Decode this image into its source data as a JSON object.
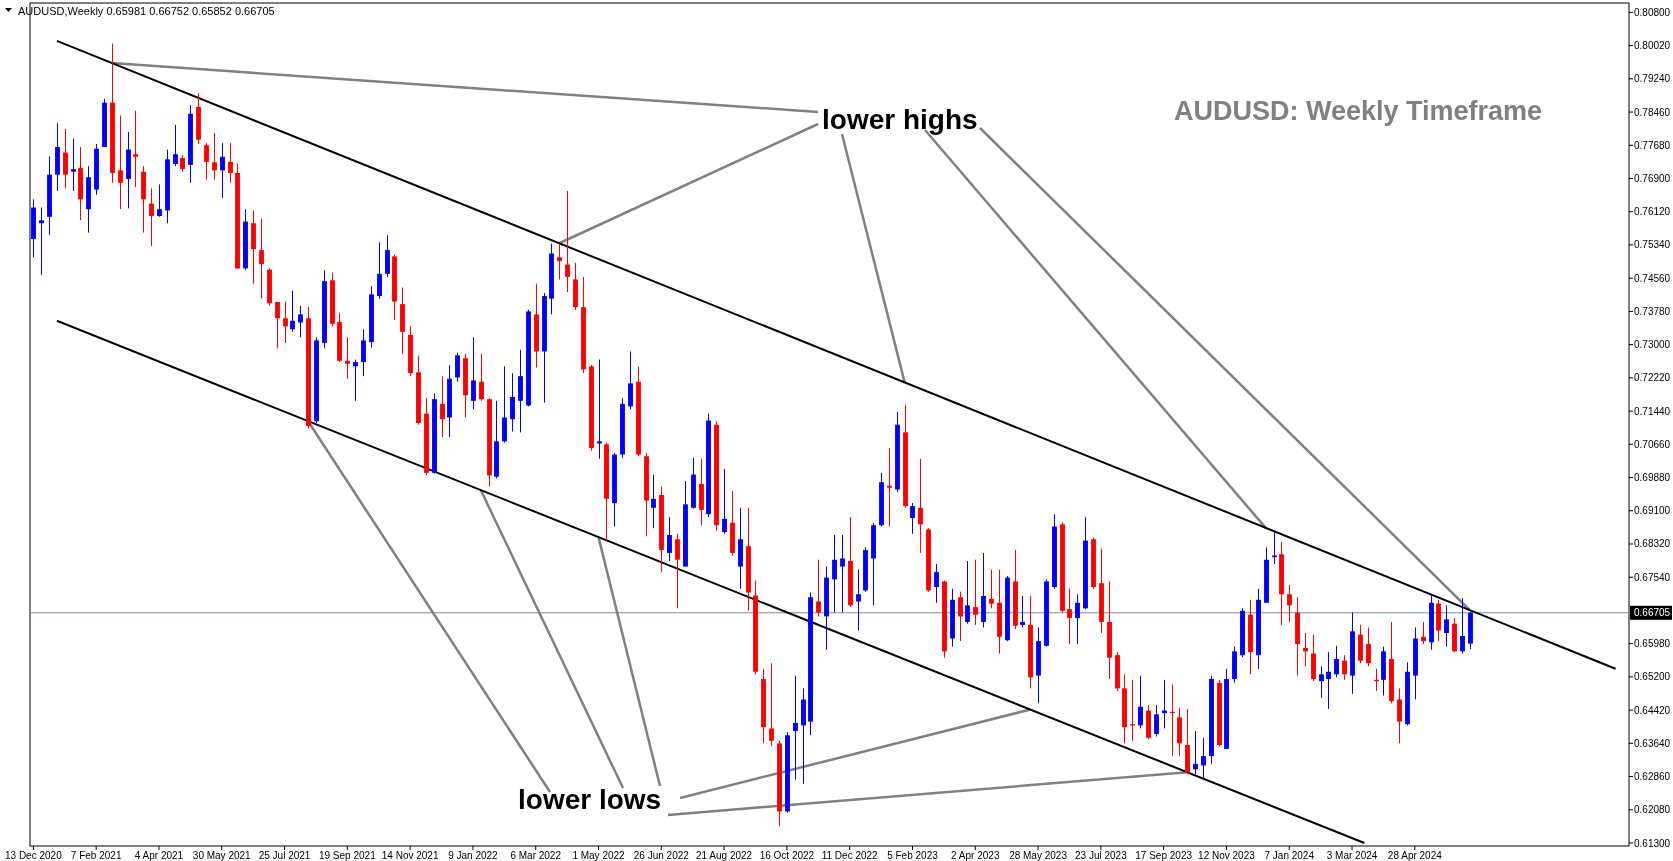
{
  "chart_data": {
    "type": "candlestick",
    "title": "AUDUSD: Weekly Timeframe",
    "annotations": [
      "AUDUSD,Weekly  0.65981 0.66752 0.65852 0.66705",
      {
        "text": "lower highs",
        "x": "2022-03-27",
        "y": 0.7538
      },
      {
        "text": "lower lows",
        "x": "2021-08-15",
        "y": 0.712
      }
    ],
    "x": [
      "2020-12-13",
      "2020-12-20",
      "2020-12-27",
      "2021-01-03",
      "2021-01-10",
      "2021-01-17",
      "2021-01-24",
      "2021-01-31",
      "2021-02-07",
      "2021-02-14",
      "2021-02-21",
      "2021-02-28",
      "2021-03-07",
      "2021-03-14",
      "2021-03-21",
      "2021-03-28",
      "2021-04-04",
      "2021-04-11",
      "2021-04-18",
      "2021-04-25",
      "2021-05-02",
      "2021-05-09",
      "2021-05-16",
      "2021-05-23",
      "2021-05-30",
      "2021-06-06",
      "2021-06-13",
      "2021-06-20",
      "2021-06-27",
      "2021-07-04",
      "2021-07-11",
      "2021-07-18",
      "2021-07-25",
      "2021-08-01",
      "2021-08-08",
      "2021-08-15",
      "2021-08-22",
      "2021-08-29",
      "2021-09-05",
      "2021-09-12",
      "2021-09-19",
      "2021-09-26",
      "2021-10-03",
      "2021-10-10",
      "2021-10-17",
      "2021-10-24",
      "2021-10-31",
      "2021-11-07",
      "2021-11-14",
      "2021-11-21",
      "2021-11-28",
      "2021-12-05",
      "2021-12-12",
      "2021-12-19",
      "2021-12-26",
      "2022-01-02",
      "2022-01-09",
      "2022-01-16",
      "2022-01-23",
      "2022-01-30",
      "2022-02-06",
      "2022-02-13",
      "2022-02-20",
      "2022-02-27",
      "2022-03-06",
      "2022-03-13",
      "2022-03-20",
      "2022-03-27",
      "2022-04-03",
      "2022-04-10",
      "2022-04-17",
      "2022-04-24",
      "2022-05-01",
      "2022-05-08",
      "2022-05-15",
      "2022-05-22",
      "2022-05-29",
      "2022-06-05",
      "2022-06-12",
      "2022-06-19",
      "2022-06-26",
      "2022-07-03",
      "2022-07-10",
      "2022-07-17",
      "2022-07-24",
      "2022-07-31",
      "2022-08-07",
      "2022-08-14",
      "2022-08-21",
      "2022-08-28",
      "2022-09-04",
      "2022-09-11",
      "2022-09-18",
      "2022-09-25",
      "2022-10-02",
      "2022-10-09",
      "2022-10-16",
      "2022-10-23",
      "2022-10-30",
      "2022-11-06",
      "2022-11-13",
      "2022-11-20",
      "2022-11-27",
      "2022-12-04",
      "2022-12-11",
      "2022-12-18",
      "2022-12-25",
      "2023-01-01",
      "2023-01-08",
      "2023-01-15",
      "2023-01-22",
      "2023-01-29",
      "2023-02-05",
      "2023-02-12",
      "2023-02-19",
      "2023-02-26",
      "2023-03-05",
      "2023-03-12",
      "2023-03-19",
      "2023-03-26",
      "2023-04-02",
      "2023-04-09",
      "2023-04-16",
      "2023-04-23",
      "2023-04-30",
      "2023-05-07",
      "2023-05-14",
      "2023-05-21",
      "2023-05-28",
      "2023-06-04",
      "2023-06-11",
      "2023-06-18",
      "2023-06-25",
      "2023-07-02",
      "2023-07-09",
      "2023-07-16",
      "2023-07-23",
      "2023-07-30",
      "2023-08-06",
      "2023-08-13",
      "2023-08-20",
      "2023-08-27",
      "2023-09-03",
      "2023-09-10",
      "2023-09-17",
      "2023-09-24",
      "2023-10-01",
      "2023-10-08",
      "2023-10-15",
      "2023-10-22",
      "2023-10-29",
      "2023-11-05",
      "2023-11-12",
      "2023-11-19",
      "2023-11-26",
      "2023-12-03",
      "2023-12-10",
      "2023-12-17",
      "2023-12-24",
      "2023-12-31",
      "2024-01-07",
      "2024-01-14",
      "2024-01-21",
      "2024-01-28",
      "2024-02-04",
      "2024-02-11",
      "2024-02-18",
      "2024-02-25",
      "2024-03-03",
      "2024-03-10",
      "2024-03-17",
      "2024-03-24",
      "2024-03-31",
      "2024-04-07",
      "2024-04-14",
      "2024-04-21",
      "2024-04-28",
      "2024-05-05",
      "2024-05-12",
      "2024-05-19",
      "2024-05-26",
      "2024-06-02",
      "2024-06-09",
      "2024-06-16"
    ],
    "ohlc": [
      [
        0.7548,
        0.7641,
        0.7505,
        0.7622
      ],
      [
        0.7585,
        0.7622,
        0.7463,
        0.7592
      ],
      [
        0.76,
        0.7742,
        0.7557,
        0.7699
      ],
      [
        0.7699,
        0.782,
        0.7661,
        0.7764
      ],
      [
        0.7751,
        0.7806,
        0.7667,
        0.7699
      ],
      [
        0.7706,
        0.7784,
        0.7661,
        0.7712
      ],
      [
        0.7715,
        0.7764,
        0.7592,
        0.7641
      ],
      [
        0.7618,
        0.7719,
        0.7563,
        0.7693
      ],
      [
        0.7664,
        0.7771,
        0.7652,
        0.776
      ],
      [
        0.7764,
        0.7877,
        0.7764,
        0.7868
      ],
      [
        0.7868,
        0.8007,
        0.768,
        0.7703
      ],
      [
        0.7709,
        0.7838,
        0.7618,
        0.768
      ],
      [
        0.7689,
        0.7799,
        0.762,
        0.7758
      ],
      [
        0.7747,
        0.7849,
        0.767,
        0.7741
      ],
      [
        0.7706,
        0.7719,
        0.7563,
        0.7641
      ],
      [
        0.7631,
        0.7667,
        0.7531,
        0.7602
      ],
      [
        0.7602,
        0.7676,
        0.76,
        0.7618
      ],
      [
        0.7615,
        0.7758,
        0.7585,
        0.7735
      ],
      [
        0.7724,
        0.7816,
        0.7719,
        0.7747
      ],
      [
        0.7738,
        0.7745,
        0.7706,
        0.7712
      ],
      [
        0.7722,
        0.7862,
        0.768,
        0.7842
      ],
      [
        0.7858,
        0.789,
        0.7771,
        0.7781
      ],
      [
        0.7768,
        0.7773,
        0.7687,
        0.7729
      ],
      [
        0.7728,
        0.7797,
        0.7687,
        0.7709
      ],
      [
        0.7709,
        0.7773,
        0.7644,
        0.7741
      ],
      [
        0.7729,
        0.7773,
        0.768,
        0.7703
      ],
      [
        0.7703,
        0.7725,
        0.7479,
        0.7479
      ],
      [
        0.7479,
        0.7618,
        0.7475,
        0.7589
      ],
      [
        0.7585,
        0.7615,
        0.7443,
        0.7524
      ],
      [
        0.7522,
        0.7596,
        0.7408,
        0.7489
      ],
      [
        0.7476,
        0.7479,
        0.7392,
        0.7397
      ],
      [
        0.74,
        0.74,
        0.7291,
        0.7362
      ],
      [
        0.7362,
        0.7401,
        0.7304,
        0.7343
      ],
      [
        0.7336,
        0.7427,
        0.733,
        0.7356
      ],
      [
        0.7352,
        0.7391,
        0.7317,
        0.7371
      ],
      [
        0.7362,
        0.7388,
        0.7103,
        0.7109
      ],
      [
        0.712,
        0.7317,
        0.7116,
        0.731
      ],
      [
        0.7304,
        0.7475,
        0.7291,
        0.7449
      ],
      [
        0.7451,
        0.7469,
        0.7343,
        0.7349
      ],
      [
        0.7353,
        0.7375,
        0.7259,
        0.7262
      ],
      [
        0.7262,
        0.7317,
        0.722,
        0.7255
      ],
      [
        0.7249,
        0.7265,
        0.7168,
        0.7259
      ],
      [
        0.7259,
        0.7336,
        0.7226,
        0.731
      ],
      [
        0.7306,
        0.7437,
        0.7293,
        0.7418
      ],
      [
        0.7414,
        0.754,
        0.7408,
        0.7466
      ],
      [
        0.7466,
        0.7557,
        0.7459,
        0.7522
      ],
      [
        0.7507,
        0.7511,
        0.7358,
        0.7401
      ],
      [
        0.7395,
        0.7434,
        0.7278,
        0.733
      ],
      [
        0.7323,
        0.7343,
        0.7226,
        0.7233
      ],
      [
        0.7235,
        0.7274,
        0.7112,
        0.7116
      ],
      [
        0.7138,
        0.7174,
        0.6993,
        0.6999
      ],
      [
        0.6999,
        0.7185,
        0.6997,
        0.7172
      ],
      [
        0.7161,
        0.7226,
        0.7083,
        0.7125
      ],
      [
        0.7129,
        0.7252,
        0.7083,
        0.722
      ],
      [
        0.7223,
        0.7281,
        0.7213,
        0.7275
      ],
      [
        0.7268,
        0.7278,
        0.7129,
        0.7181
      ],
      [
        0.7168,
        0.7317,
        0.7148,
        0.7216
      ],
      [
        0.7213,
        0.7278,
        0.7168,
        0.7172
      ],
      [
        0.7172,
        0.7174,
        0.6967,
        0.6993
      ],
      [
        0.699,
        0.7168,
        0.6986,
        0.7073
      ],
      [
        0.7073,
        0.7249,
        0.707,
        0.7129
      ],
      [
        0.7125,
        0.7233,
        0.7096,
        0.7177
      ],
      [
        0.7168,
        0.7288,
        0.7094,
        0.7226
      ],
      [
        0.7157,
        0.7382,
        0.7155,
        0.7378
      ],
      [
        0.7371,
        0.7443,
        0.7246,
        0.7284
      ],
      [
        0.7284,
        0.7421,
        0.7164,
        0.7414
      ],
      [
        0.7408,
        0.7537,
        0.7371,
        0.7514
      ],
      [
        0.7505,
        0.7537,
        0.7453,
        0.7496
      ],
      [
        0.7488,
        0.7661,
        0.7423,
        0.7459
      ],
      [
        0.7453,
        0.7492,
        0.7382,
        0.7388
      ],
      [
        0.7388,
        0.7459,
        0.7233,
        0.7242
      ],
      [
        0.7249,
        0.7252,
        0.7051,
        0.7057
      ],
      [
        0.7068,
        0.7265,
        0.7032,
        0.7073
      ],
      [
        0.7066,
        0.707,
        0.684,
        0.6938
      ],
      [
        0.6928,
        0.7045,
        0.6873,
        0.7042
      ],
      [
        0.7042,
        0.7174,
        0.7034,
        0.7161
      ],
      [
        0.7155,
        0.7284,
        0.7148,
        0.7209
      ],
      [
        0.7213,
        0.7248,
        0.7038,
        0.7042
      ],
      [
        0.7038,
        0.7045,
        0.685,
        0.6934
      ],
      [
        0.6917,
        0.6995,
        0.6869,
        0.6938
      ],
      [
        0.6947,
        0.6967,
        0.6766,
        0.6818
      ],
      [
        0.6811,
        0.6895,
        0.6792,
        0.6853
      ],
      [
        0.6843,
        0.6856,
        0.6681,
        0.6795
      ],
      [
        0.6779,
        0.698,
        0.6779,
        0.6925
      ],
      [
        0.6917,
        0.7034,
        0.6915,
        0.6995
      ],
      [
        0.6973,
        0.7032,
        0.6876,
        0.6912
      ],
      [
        0.6902,
        0.7138,
        0.6895,
        0.7122
      ],
      [
        0.7112,
        0.712,
        0.6863,
        0.6876
      ],
      [
        0.686,
        0.7008,
        0.6856,
        0.6891
      ],
      [
        0.6882,
        0.6956,
        0.6805,
        0.6811
      ],
      [
        0.6779,
        0.6917,
        0.6727,
        0.6843
      ],
      [
        0.6827,
        0.6917,
        0.6675,
        0.6718
      ],
      [
        0.6711,
        0.6746,
        0.6526,
        0.6532
      ],
      [
        0.6515,
        0.6539,
        0.6364,
        0.6402
      ],
      [
        0.6399,
        0.6552,
        0.6357,
        0.637
      ],
      [
        0.6364,
        0.637,
        0.6169,
        0.6204
      ],
      [
        0.6204,
        0.639,
        0.6201,
        0.6383
      ],
      [
        0.6393,
        0.6523,
        0.6279,
        0.6412
      ],
      [
        0.6406,
        0.6493,
        0.6269,
        0.6467
      ],
      [
        0.6415,
        0.6718,
        0.6383,
        0.6707
      ],
      [
        0.6697,
        0.6795,
        0.6662,
        0.6671
      ],
      [
        0.6662,
        0.6779,
        0.6584,
        0.6753
      ],
      [
        0.6749,
        0.6853,
        0.6671,
        0.6795
      ],
      [
        0.6779,
        0.6853,
        0.6671,
        0.6798
      ],
      [
        0.6792,
        0.6895,
        0.6684,
        0.6688
      ],
      [
        0.6697,
        0.6772,
        0.6629,
        0.6714
      ],
      [
        0.6723,
        0.6824,
        0.672,
        0.6818
      ],
      [
        0.6798,
        0.6882,
        0.6688,
        0.6876
      ],
      [
        0.6876,
        0.6999,
        0.6873,
        0.6977
      ],
      [
        0.6969,
        0.7057,
        0.6873,
        0.6964
      ],
      [
        0.696,
        0.7142,
        0.6954,
        0.7112
      ],
      [
        0.7094,
        0.7159,
        0.6917,
        0.6921
      ],
      [
        0.6893,
        0.6928,
        0.6856,
        0.6921
      ],
      [
        0.6917,
        0.7032,
        0.6811,
        0.6878
      ],
      [
        0.6866,
        0.6869,
        0.672,
        0.6723
      ],
      [
        0.6731,
        0.6785,
        0.6694,
        0.6766
      ],
      [
        0.6744,
        0.6746,
        0.6565,
        0.658
      ],
      [
        0.661,
        0.6727,
        0.6591,
        0.6701
      ],
      [
        0.6707,
        0.672,
        0.6604,
        0.6662
      ],
      [
        0.6649,
        0.6792,
        0.6645,
        0.6688
      ],
      [
        0.6684,
        0.6795,
        0.6642,
        0.6666
      ],
      [
        0.6649,
        0.6811,
        0.6636,
        0.671
      ],
      [
        0.6703,
        0.6772,
        0.6681,
        0.6692
      ],
      [
        0.6694,
        0.6772,
        0.6575,
        0.6614
      ],
      [
        0.6606,
        0.6757,
        0.6604,
        0.6753
      ],
      [
        0.6744,
        0.6818,
        0.6632,
        0.664
      ],
      [
        0.6642,
        0.671,
        0.6636,
        0.6649
      ],
      [
        0.6642,
        0.671,
        0.6493,
        0.6519
      ],
      [
        0.6523,
        0.6636,
        0.6458,
        0.6604
      ],
      [
        0.6593,
        0.6749,
        0.6591,
        0.6744
      ],
      [
        0.6731,
        0.6902,
        0.6727,
        0.6873
      ],
      [
        0.6878,
        0.6882,
        0.6671,
        0.6675
      ],
      [
        0.6679,
        0.6727,
        0.6597,
        0.6658
      ],
      [
        0.6658,
        0.6714,
        0.6597,
        0.6694
      ],
      [
        0.6681,
        0.6895,
        0.6679,
        0.684
      ],
      [
        0.6843,
        0.6847,
        0.6727,
        0.6731
      ],
      [
        0.674,
        0.6821,
        0.6623,
        0.6649
      ],
      [
        0.6649,
        0.6744,
        0.6515,
        0.6565
      ],
      [
        0.6571,
        0.6578,
        0.6487,
        0.6493
      ],
      [
        0.6493,
        0.6526,
        0.6364,
        0.6402
      ],
      [
        0.6409,
        0.6513,
        0.637,
        0.6406
      ],
      [
        0.6406,
        0.6523,
        0.6399,
        0.645
      ],
      [
        0.6441,
        0.6454,
        0.6373,
        0.6377
      ],
      [
        0.6386,
        0.6454,
        0.638,
        0.6432
      ],
      [
        0.6435,
        0.6513,
        0.6399,
        0.6441
      ],
      [
        0.6438,
        0.6502,
        0.6334,
        0.6435
      ],
      [
        0.6425,
        0.6448,
        0.6334,
        0.6364
      ],
      [
        0.636,
        0.6445,
        0.6295,
        0.6295
      ],
      [
        0.6303,
        0.6393,
        0.6292,
        0.6316
      ],
      [
        0.6312,
        0.6377,
        0.6279,
        0.6334
      ],
      [
        0.6334,
        0.6523,
        0.6316,
        0.6515
      ],
      [
        0.6506,
        0.6513,
        0.6357,
        0.636
      ],
      [
        0.6351,
        0.6539,
        0.6351,
        0.6515
      ],
      [
        0.6515,
        0.6591,
        0.6506,
        0.658
      ],
      [
        0.6571,
        0.6681,
        0.6567,
        0.6675
      ],
      [
        0.6666,
        0.6701,
        0.6526,
        0.6578
      ],
      [
        0.6571,
        0.6727,
        0.6539,
        0.6701
      ],
      [
        0.6694,
        0.6824,
        0.6694,
        0.6795
      ],
      [
        0.6801,
        0.686,
        0.6785,
        0.6805
      ],
      [
        0.6808,
        0.6837,
        0.6642,
        0.6714
      ],
      [
        0.6714,
        0.6736,
        0.6649,
        0.6688
      ],
      [
        0.6671,
        0.6707,
        0.6523,
        0.6597
      ],
      [
        0.6588,
        0.6623,
        0.6545,
        0.658
      ],
      [
        0.6575,
        0.6619,
        0.651,
        0.6515
      ],
      [
        0.651,
        0.6545,
        0.6471,
        0.6526
      ],
      [
        0.6515,
        0.6578,
        0.6445,
        0.6532
      ],
      [
        0.6526,
        0.6593,
        0.6519,
        0.6562
      ],
      [
        0.6558,
        0.6571,
        0.6513,
        0.6526
      ],
      [
        0.6523,
        0.6671,
        0.648,
        0.6627
      ],
      [
        0.6619,
        0.6642,
        0.6552,
        0.6558
      ],
      [
        0.6597,
        0.6636,
        0.6545,
        0.6552
      ],
      [
        0.6513,
        0.6539,
        0.6487,
        0.651
      ],
      [
        0.6513,
        0.6591,
        0.6476,
        0.658
      ],
      [
        0.6562,
        0.6649,
        0.6458,
        0.6463
      ],
      [
        0.6467,
        0.6493,
        0.6364,
        0.6415
      ],
      [
        0.6409,
        0.6554,
        0.6406,
        0.6532
      ],
      [
        0.6523,
        0.6636,
        0.6467,
        0.661
      ],
      [
        0.6614,
        0.6649,
        0.6597,
        0.6604
      ],
      [
        0.6601,
        0.6714,
        0.6584,
        0.6694
      ],
      [
        0.6692,
        0.6701,
        0.6604,
        0.6629
      ],
      [
        0.6623,
        0.6688,
        0.6591,
        0.6655
      ],
      [
        0.6645,
        0.6658,
        0.6578,
        0.658
      ],
      [
        0.658,
        0.6705,
        0.6575,
        0.6616
      ],
      [
        0.65981,
        0.66752,
        0.65852,
        0.66705
      ]
    ],
    "series": [
      {
        "type": "line",
        "x": [
          "2021-01-03",
          "2024-10-24"
        ],
        "values": [
          0.8013,
          0.6539
        ],
        "color": "#000000"
      },
      {
        "type": "line",
        "x": [
          "2021-01-03",
          "2024-03-14"
        ],
        "values": [
          0.7356,
          0.613
        ],
        "color": "#000000"
      }
    ],
    "xlim": [
      "2020-12-10",
      "2024-11-05"
    ],
    "xticks": [
      {
        "value": "2020-12-13",
        "label": "13 Dec 2020"
      },
      {
        "value": "2021-02-07",
        "label": "7 Feb 2021"
      },
      {
        "value": "2021-04-04",
        "label": "4 Apr 2021"
      },
      {
        "value": "2021-05-30",
        "label": "30 May 2021"
      },
      {
        "value": "2021-07-25",
        "label": "25 Jul 2021"
      },
      {
        "value": "2021-09-19",
        "label": "19 Sep 2021"
      },
      {
        "value": "2021-11-14",
        "label": "14 Nov 2021"
      },
      {
        "value": "2022-01-09",
        "label": "9 Jan 2022"
      },
      {
        "value": "2022-03-06",
        "label": "6 Mar 2022"
      },
      {
        "value": "2022-05-01",
        "label": "1 May 2022"
      },
      {
        "value": "2022-06-26",
        "label": "26 Jun 2022"
      },
      {
        "value": "2022-08-21",
        "label": "21 Aug 2022"
      },
      {
        "value": "2022-10-16",
        "label": "16 Oct 2022"
      },
      {
        "value": "2022-12-11",
        "label": "11 Dec 2022"
      },
      {
        "value": "2023-02-05",
        "label": "5 Feb 2023"
      },
      {
        "value": "2023-04-02",
        "label": "2 Apr 2023"
      },
      {
        "value": "2023-05-28",
        "label": "28 May 2023"
      },
      {
        "value": "2023-07-23",
        "label": "23 Jul 2023"
      },
      {
        "value": "2023-09-17",
        "label": "17 Sep 2023"
      },
      {
        "value": "2023-11-12",
        "label": "12 Nov 2023"
      },
      {
        "value": "2024-01-07",
        "label": "7 Jan 2024"
      },
      {
        "value": "2024-03-03",
        "label": "3 Mar 2024"
      },
      {
        "value": "2024-04-28",
        "label": "28 Apr 2024"
      }
    ],
    "ylim": [
      0.6123,
      0.8102
    ],
    "yticks": [
      {
        "value": 0.808,
        "label": "0.80800"
      },
      {
        "value": 0.8002,
        "label": "0.80020"
      },
      {
        "value": 0.7924,
        "label": "0.79240"
      },
      {
        "value": 0.7846,
        "label": "0.78460"
      },
      {
        "value": 0.7768,
        "label": "0.77680"
      },
      {
        "value": 0.769,
        "label": "0.76900"
      },
      {
        "value": 0.7612,
        "label": "0.76120"
      },
      {
        "value": 0.7534,
        "label": "0.75340"
      },
      {
        "value": 0.7456,
        "label": "0.74560"
      },
      {
        "value": 0.7378,
        "label": "0.73780"
      },
      {
        "value": 0.73,
        "label": "0.73000"
      },
      {
        "value": 0.7222,
        "label": "0.72220"
      },
      {
        "value": 0.7144,
        "label": "0.71440"
      },
      {
        "value": 0.7066,
        "label": "0.70660"
      },
      {
        "value": 0.6988,
        "label": "0.69880"
      },
      {
        "value": 0.691,
        "label": "0.69100"
      },
      {
        "value": 0.6832,
        "label": "0.68320"
      },
      {
        "value": 0.6754,
        "label": "0.67540"
      },
      {
        "value": 0.6598,
        "label": "0.65980"
      },
      {
        "value": 0.652,
        "label": "0.65200"
      },
      {
        "value": 0.6442,
        "label": "0.64420"
      },
      {
        "value": 0.6364,
        "label": "0.63640"
      },
      {
        "value": 0.6286,
        "label": "0.62860"
      },
      {
        "value": 0.6208,
        "label": "0.62080"
      },
      {
        "value": 0.613,
        "label": "0.61300"
      }
    ],
    "ref_lines": [
      {
        "axis": "y",
        "value": 0.66705,
        "label": "0.66705",
        "color": "#7a8ca8"
      }
    ]
  }
}
